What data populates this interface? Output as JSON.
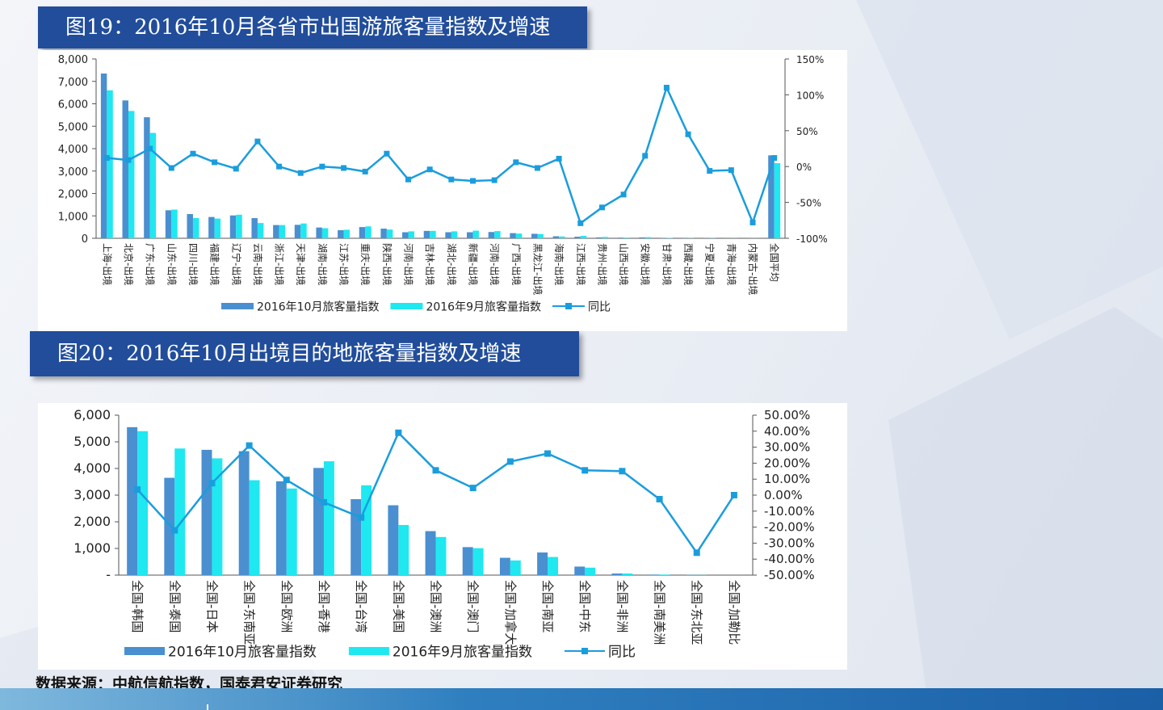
{
  "chart_data": [
    {
      "type": "bar",
      "title": "图19：2016年10月各省市出国游旅客量指数及增速",
      "categories": [
        "上海-出境",
        "北京-出境",
        "广东-出境",
        "山东-出境",
        "四川-出境",
        "福建-出境",
        "辽宁-出境",
        "云南-出境",
        "浙江-出境",
        "天津-出境",
        "湖南-出境",
        "江苏-出境",
        "重庆-出境",
        "陕西-出境",
        "河南-出境",
        "吉林-出境",
        "湖北-出境",
        "新疆-出境",
        "河南-出境",
        "广西-出境",
        "黑龙江-出境",
        "海南-出境",
        "江西-出境",
        "贵州-出境",
        "山西-出境",
        "安徽-出境",
        "甘肃-出境",
        "西藏-出境",
        "宁夏-出境",
        "青海-出境",
        "内蒙古-出境",
        "全国平均"
      ],
      "series": [
        {
          "name": "2016年10月旅客量指数",
          "kind": "bar",
          "axis": "left",
          "color": "#4a8fd0",
          "values": [
            7350,
            6150,
            5400,
            1250,
            1080,
            950,
            1020,
            900,
            590,
            600,
            480,
            360,
            500,
            430,
            270,
            330,
            270,
            270,
            280,
            230,
            200,
            90,
            70,
            40,
            30,
            40,
            20,
            10,
            10,
            5,
            5,
            3700
          ]
        },
        {
          "name": "2016年9月旅客量指数",
          "kind": "bar",
          "axis": "left",
          "color": "#1fe8f0",
          "values": [
            6600,
            5680,
            4700,
            1280,
            900,
            880,
            1050,
            680,
            590,
            660,
            450,
            380,
            530,
            390,
            310,
            330,
            310,
            340,
            320,
            210,
            190,
            80,
            110,
            60,
            30,
            50,
            20,
            10,
            10,
            5,
            5,
            3350
          ]
        },
        {
          "name": "同比",
          "kind": "line",
          "axis": "right",
          "color": "#1a9ddd",
          "values": [
            12,
            9,
            25,
            -2,
            18,
            6,
            -3,
            35,
            0,
            -9,
            0,
            -2,
            -7,
            18,
            -18,
            -4,
            -18,
            -20,
            -19,
            6,
            -2,
            11,
            -79,
            -57,
            -39,
            15,
            110,
            45,
            -6,
            -5,
            -78,
            12
          ]
        }
      ],
      "ylim_left": [
        0,
        8000
      ],
      "yticks_left": [
        "0",
        "1,000",
        "2,000",
        "3,000",
        "4,000",
        "5,000",
        "6,000",
        "7,000",
        "8,000"
      ],
      "ylim_right": [
        -100,
        150
      ],
      "yticks_right": [
        "-100%",
        "-50%",
        "0%",
        "50%",
        "100%",
        "150%"
      ],
      "legend": [
        "2016年10月旅客量指数",
        "2016年9月旅客量指数",
        "同比"
      ]
    },
    {
      "type": "bar",
      "title": "图20：2016年10月出境目的地旅客量指数及增速",
      "categories": [
        "全国-韩国",
        "全国-泰国",
        "全国-日本",
        "全国-东南亚",
        "全国-欧洲",
        "全国-香港",
        "全国-台湾",
        "全国-美国",
        "全国-澳洲",
        "全国-澳门",
        "全国-加拿大",
        "全国-南亚",
        "全国-中东",
        "全国-非洲",
        "全国-南美洲",
        "全国-东北亚",
        "全国-加勒比"
      ],
      "series": [
        {
          "name": "2016年10月旅客量指数",
          "kind": "bar",
          "axis": "left",
          "color": "#4a8fd0",
          "values": [
            5550,
            3650,
            4700,
            4650,
            3520,
            4020,
            2850,
            2620,
            1650,
            1050,
            650,
            850,
            320,
            60,
            20,
            10,
            0
          ]
        },
        {
          "name": "2016年9月旅客量指数",
          "kind": "bar",
          "axis": "left",
          "color": "#1fe8f0",
          "values": [
            5400,
            4750,
            4380,
            3560,
            3250,
            4270,
            3370,
            1880,
            1430,
            1010,
            550,
            680,
            280,
            60,
            20,
            5,
            0
          ]
        },
        {
          "name": "同比",
          "kind": "line",
          "axis": "right",
          "color": "#1a9ddd",
          "values": [
            3.5,
            -22,
            7.5,
            31,
            9.5,
            -4.5,
            -14,
            39,
            15.5,
            4.5,
            21,
            26,
            15.5,
            15,
            -2.5,
            -36,
            0
          ]
        }
      ],
      "ylim_left": [
        0,
        6000
      ],
      "yticks_left": [
        "-",
        "1,000",
        "2,000",
        "3,000",
        "4,000",
        "5,000",
        "6,000"
      ],
      "ylim_right": [
        -50,
        50
      ],
      "yticks_right": [
        "-50.00%",
        "-40.00%",
        "-30.00%",
        "-20.00%",
        "-10.00%",
        "0.00%",
        "10.00%",
        "20.00%",
        "30.00%",
        "40.00%",
        "50.00%"
      ],
      "legend": [
        "2016年10月旅客量指数",
        "2016年9月旅客量指数",
        "同比"
      ]
    }
  ],
  "source": "数据来源：中航信航指数，国泰君安证券研究"
}
